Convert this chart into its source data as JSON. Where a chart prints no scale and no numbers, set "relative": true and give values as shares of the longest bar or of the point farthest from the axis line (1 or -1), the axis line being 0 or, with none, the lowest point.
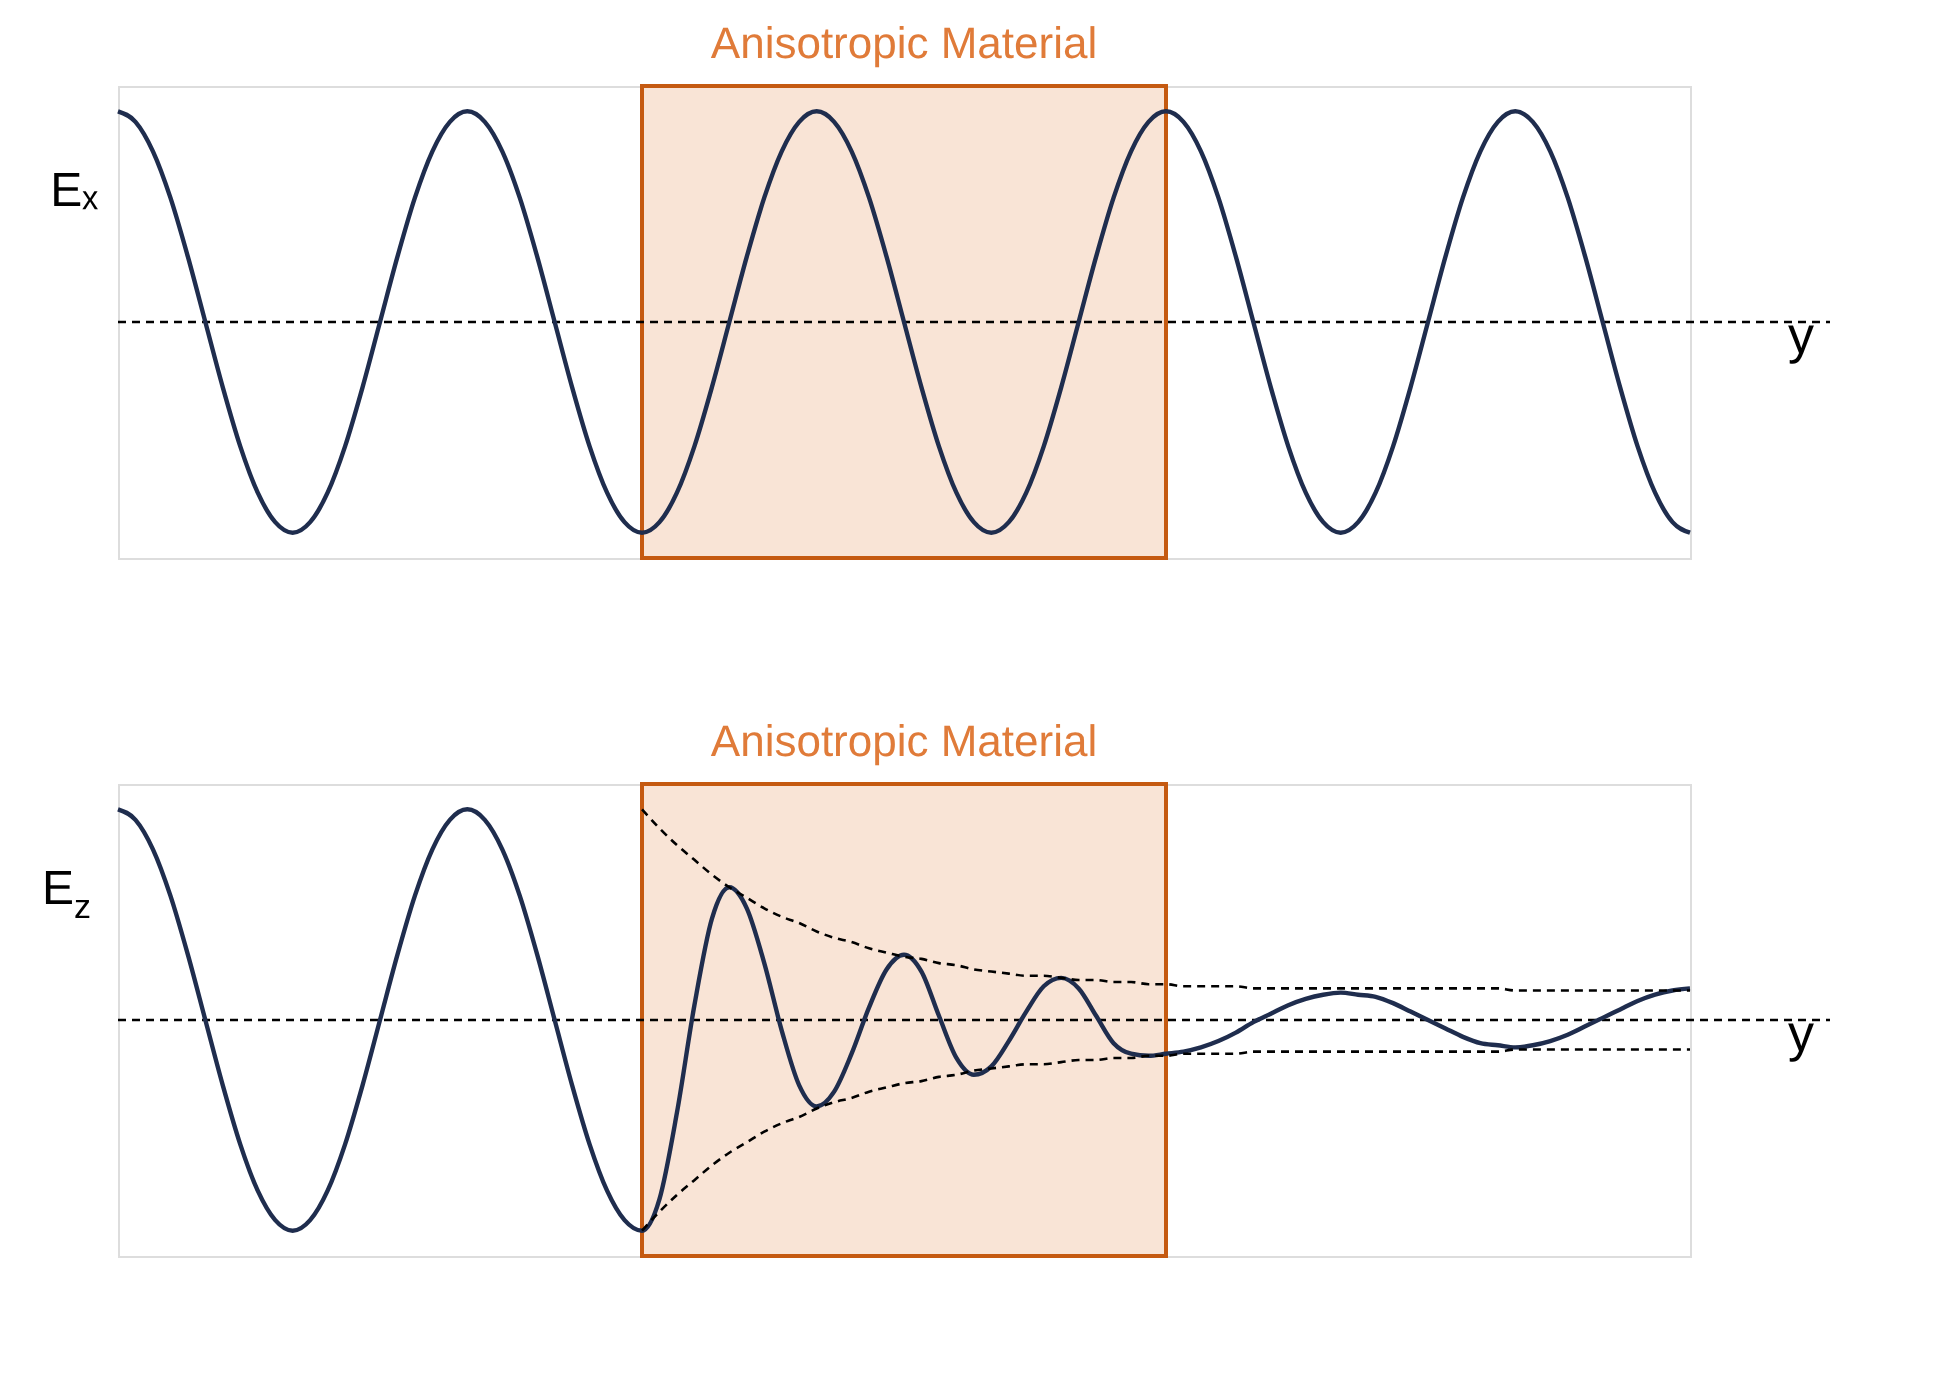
{
  "chart_data": [
    {
      "type": "line",
      "relative": true,
      "title": "Anisotropic Material",
      "ylabel": "Eₓ",
      "xlabel": "y",
      "tick_labels": false,
      "grid": false,
      "categories": [
        null,
        null,
        null,
        null,
        null,
        null,
        null,
        null,
        null,
        null,
        null,
        null,
        null,
        null,
        null,
        null,
        null,
        null,
        null,
        null,
        null,
        null,
        null,
        null,
        null,
        null,
        null,
        null,
        null,
        null,
        null,
        null,
        null,
        null,
        null,
        null,
        null,
        null,
        null,
        null,
        null,
        null,
        null,
        null,
        null,
        null,
        null,
        null,
        null,
        null,
        null,
        null,
        null,
        null,
        null,
        null,
        null,
        null,
        null,
        null,
        null,
        null,
        null,
        null,
        null,
        null,
        null,
        null,
        null,
        null,
        null,
        null,
        null,
        null,
        null,
        null,
        null,
        null,
        null,
        null,
        null,
        null,
        null,
        null,
        null,
        null,
        null,
        null,
        null,
        null,
        null
      ],
      "series": [
        {
          "color": "#1f2d4e",
          "line_style": "solid",
          "values": [
            1,
            0.95,
            0.81,
            0.59,
            0.31,
            0,
            -0.31,
            -0.59,
            -0.81,
            -0.95,
            -1,
            -0.95,
            -0.81,
            -0.59,
            -0.31,
            0,
            0.31,
            0.59,
            0.81,
            0.95,
            1,
            0.95,
            0.81,
            0.59,
            0.31,
            0,
            -0.31,
            -0.59,
            -0.81,
            -0.95,
            -1,
            -0.95,
            -0.81,
            -0.59,
            -0.31,
            0,
            0.31,
            0.59,
            0.81,
            0.95,
            1,
            0.95,
            0.81,
            0.59,
            0.31,
            0,
            -0.31,
            -0.59,
            -0.81,
            -0.95,
            -1,
            -0.95,
            -0.81,
            -0.59,
            -0.31,
            0,
            0.31,
            0.59,
            0.81,
            0.95,
            1,
            0.95,
            0.81,
            0.59,
            0.31,
            0,
            -0.31,
            -0.59,
            -0.81,
            -0.95,
            -1,
            -0.95,
            -0.81,
            -0.59,
            -0.31,
            0,
            0.31,
            0.59,
            0.81,
            0.95,
            1,
            0.95,
            0.81,
            0.59,
            0.31,
            0,
            -0.31,
            -0.59,
            -0.81,
            -0.95,
            -1
          ]
        }
      ],
      "ref_lines": [
        {
          "axis": "y",
          "value": 0,
          "line_style": "dashed",
          "color": "#000000"
        }
      ]
    },
    {
      "type": "line",
      "relative": true,
      "title": "Anisotropic Material",
      "ylabel": "E$_{z}$",
      "xlabel": "y",
      "tick_labels": false,
      "grid": false,
      "categories": [
        null,
        null,
        null,
        null,
        null,
        null,
        null,
        null,
        null,
        null,
        null,
        null,
        null,
        null,
        null,
        null,
        null,
        null,
        null,
        null,
        null,
        null,
        null,
        null,
        null,
        null,
        null,
        null,
        null,
        null,
        null,
        null,
        null,
        null,
        null,
        null,
        null,
        null,
        null,
        null,
        null,
        null,
        null,
        null,
        null,
        null,
        null,
        null,
        null,
        null,
        null,
        null,
        null,
        null,
        null,
        null,
        null,
        null,
        null,
        null,
        null,
        null,
        null,
        null,
        null,
        null,
        null,
        null,
        null,
        null,
        null,
        null,
        null,
        null,
        null,
        null,
        null,
        null,
        null,
        null,
        null,
        null,
        null,
        null,
        null,
        null,
        null,
        null,
        null,
        null,
        null
      ],
      "series": [
        {
          "color": "#1f2d4e",
          "line_style": "solid",
          "values": [
            1,
            0.95,
            0.81,
            0.59,
            0.31,
            0,
            -0.31,
            -0.59,
            -0.81,
            -0.95,
            -1,
            -0.95,
            -0.81,
            -0.59,
            -0.31,
            0,
            0.31,
            0.59,
            0.81,
            0.95,
            1,
            0.95,
            0.81,
            0.59,
            0.31,
            0,
            -0.31,
            -0.59,
            -0.81,
            -0.95,
            -1,
            -0.85,
            -0.44,
            0.07,
            0.48,
            0.63,
            0.53,
            0.27,
            -0.05,
            -0.31,
            -0.41,
            -0.34,
            -0.16,
            0.06,
            0.24,
            0.31,
            0.23,
            0.02,
            -0.18,
            -0.26,
            -0.22,
            -0.1,
            0.04,
            0.16,
            0.2,
            0.15,
            0.02,
            -0.11,
            -0.16,
            -0.17,
            -0.16,
            -0.15,
            -0.13,
            -0.1,
            -0.06,
            -0.01,
            0.03,
            0.07,
            0.1,
            0.12,
            0.13,
            0.12,
            0.11,
            0.08,
            0.04,
            0,
            -0.04,
            -0.08,
            -0.11,
            -0.12,
            -0.13,
            -0.12,
            -0.1,
            -0.07,
            -0.03,
            0.01,
            0.05,
            0.09,
            0.12,
            0.14,
            0.15
          ]
        },
        {
          "color": "#000000",
          "line_style": "dashed",
          "values": [
            null,
            null,
            null,
            null,
            null,
            null,
            null,
            null,
            null,
            null,
            null,
            null,
            null,
            null,
            null,
            null,
            null,
            null,
            null,
            null,
            null,
            null,
            null,
            null,
            null,
            null,
            null,
            null,
            null,
            null,
            1,
            0.91,
            0.83,
            0.76,
            0.69,
            0.63,
            0.58,
            0.53,
            0.49,
            0.46,
            0.42,
            0.39,
            0.37,
            0.34,
            0.32,
            0.3,
            0.29,
            0.27,
            0.26,
            0.24,
            0.23,
            0.22,
            0.21,
            0.21,
            0.2,
            0.19,
            0.19,
            0.18,
            0.18,
            0.17,
            0.17,
            0.16,
            0.16,
            0.16,
            0.16,
            0.15,
            0.15,
            0.15,
            0.15,
            0.15,
            0.15,
            0.15,
            0.15,
            0.15,
            0.15,
            0.15,
            0.15,
            0.15,
            0.15,
            0.15,
            0.14,
            0.14,
            0.14,
            0.14,
            0.14,
            0.14,
            0.14,
            0.14,
            0.14,
            0.14,
            0.14
          ]
        },
        {
          "color": "#000000",
          "line_style": "dashed",
          "values": [
            null,
            null,
            null,
            null,
            null,
            null,
            null,
            null,
            null,
            null,
            null,
            null,
            null,
            null,
            null,
            null,
            null,
            null,
            null,
            null,
            null,
            null,
            null,
            null,
            null,
            null,
            null,
            null,
            null,
            null,
            -1,
            -0.91,
            -0.83,
            -0.76,
            -0.69,
            -0.63,
            -0.58,
            -0.53,
            -0.49,
            -0.46,
            -0.42,
            -0.39,
            -0.37,
            -0.34,
            -0.32,
            -0.3,
            -0.29,
            -0.27,
            -0.26,
            -0.24,
            -0.23,
            -0.22,
            -0.21,
            -0.21,
            -0.2,
            -0.19,
            -0.19,
            -0.18,
            -0.18,
            -0.17,
            -0.17,
            -0.16,
            -0.16,
            -0.16,
            -0.16,
            -0.15,
            -0.15,
            -0.15,
            -0.15,
            -0.15,
            -0.15,
            -0.15,
            -0.15,
            -0.15,
            -0.15,
            -0.15,
            -0.15,
            -0.15,
            -0.15,
            -0.15,
            -0.14,
            -0.14,
            -0.14,
            -0.14,
            -0.14,
            -0.14,
            -0.14,
            -0.14,
            -0.14,
            -0.14,
            -0.14
          ]
        }
      ],
      "ref_lines": [
        {
          "axis": "y",
          "value": 0,
          "line_style": "dashed",
          "color": "#000000"
        }
      ]
    }
  ]
}
